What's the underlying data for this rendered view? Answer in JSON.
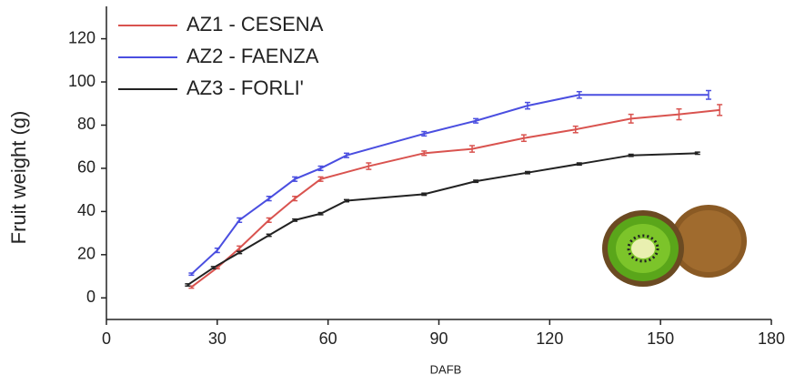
{
  "chart_data": {
    "type": "line",
    "x_label": "DAFB",
    "y_label": "Fruit weight (g)",
    "xlim": [
      0,
      180
    ],
    "ylim": [
      -10,
      135
    ],
    "xticks": [
      0,
      30,
      60,
      90,
      120,
      150,
      180
    ],
    "yticks": [
      0,
      20,
      40,
      60,
      80,
      100,
      120
    ],
    "series": [
      {
        "name": "AZ1 - CESENA",
        "color": "#d9534f",
        "x": [
          23,
          30,
          36,
          44,
          51,
          58,
          71,
          86,
          99,
          113,
          127,
          142,
          155,
          166
        ],
        "values": [
          5,
          14,
          23,
          36,
          46,
          55,
          61,
          67,
          69,
          74,
          78,
          83,
          85,
          87
        ],
        "errors": [
          0.5,
          0.5,
          1,
          1,
          1,
          1,
          1.5,
          1,
          1.5,
          1.5,
          1.5,
          2,
          2.5,
          2.5
        ]
      },
      {
        "name": "AZ2 - FAENZA",
        "color": "#4a4ee0",
        "x": [
          23,
          30,
          36,
          44,
          51,
          58,
          65,
          86,
          100,
          114,
          128,
          163
        ],
        "values": [
          11,
          22,
          36,
          46,
          55,
          60,
          66,
          76,
          82,
          89,
          94,
          94
        ],
        "errors": [
          0.5,
          1,
          1,
          1,
          1,
          1,
          1,
          1,
          1,
          1.5,
          1.5,
          2
        ]
      },
      {
        "name": "AZ3 - FORLI'",
        "color": "#222222",
        "x": [
          22,
          29,
          36,
          44,
          51,
          58,
          65,
          86,
          100,
          114,
          128,
          142,
          160
        ],
        "values": [
          6,
          14,
          21,
          29,
          36,
          39,
          45,
          48,
          54,
          58,
          62,
          66,
          67
        ],
        "errors": [
          0.5,
          0.5,
          0.5,
          0.5,
          0.5,
          0.5,
          0.5,
          0.5,
          0.5,
          0.5,
          0.5,
          0.5,
          0.5
        ]
      }
    ]
  }
}
